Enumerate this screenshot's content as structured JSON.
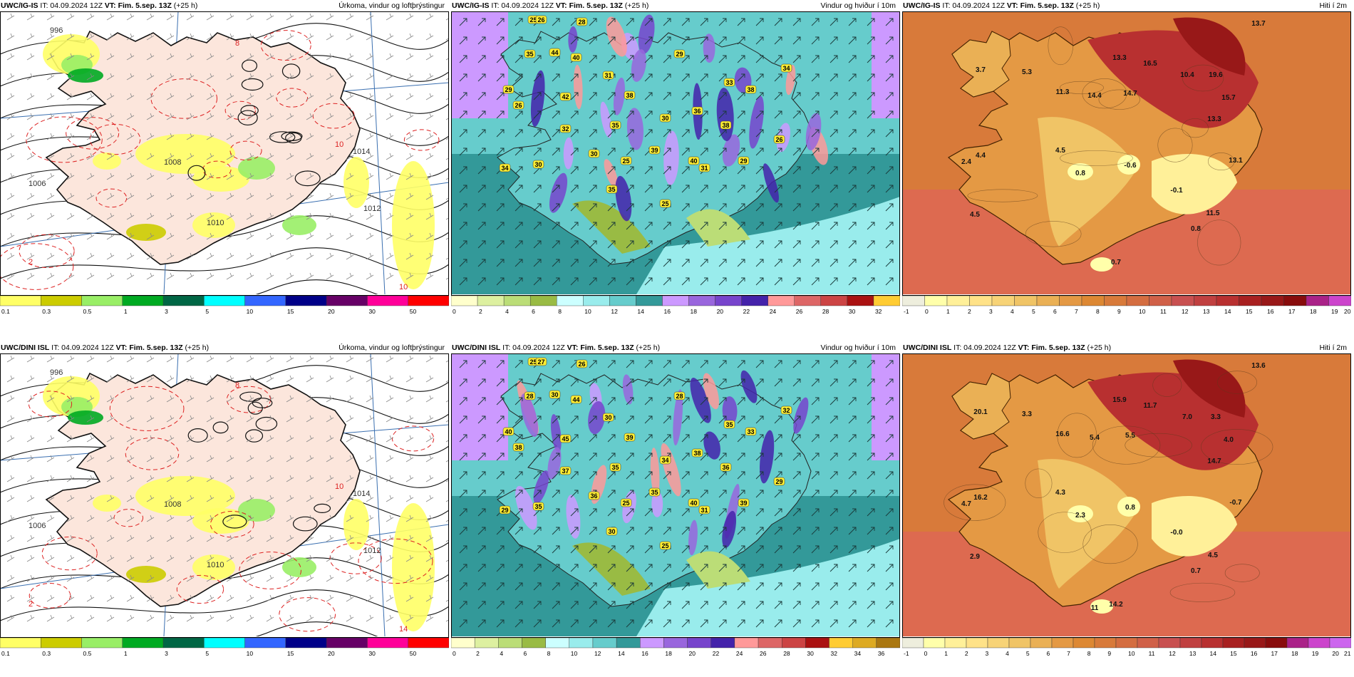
{
  "rows": [
    {
      "top": 17,
      "panels": [
        {
          "model": "UWC/IG-IS",
          "it": "IT: 04.09.2024 12Z",
          "vt": "VT: Fim. 5.sep. 13Z",
          "lead": "(+25 h)",
          "title": "Úrkoma, vindur og loftþrýstingur",
          "kind": "precip",
          "colorbar": {
            "colors": [
              "#ffff66",
              "#cccc00",
              "#99ee66",
              "#00aa22",
              "#006644",
              "#00ffff",
              "#3366ff",
              "#000088",
              "#660066",
              "#ff0099",
              "#ff0000"
            ],
            "labels": [
              "0.1",
              "0.3",
              "0.5",
              "1",
              "3",
              "5",
              "10",
              "15",
              "20",
              "30",
              "50"
            ]
          },
          "labels": [
            {
              "t": "996"
            },
            {
              "t": "1006"
            },
            {
              "t": "1008"
            },
            {
              "t": "1010"
            },
            {
              "t": "1012"
            },
            {
              "t": "1014"
            },
            {
              "t": "2"
            },
            {
              "t": "8"
            },
            {
              "t": "10"
            },
            {
              "t": "10"
            }
          ]
        },
        {
          "model": "UWC/IG-IS",
          "it": "IT: 04.09.2024 12Z",
          "vt": "VT: Fim. 5.sep. 13Z",
          "lead": "(+25 h)",
          "title": "Vindur og hviður í 10m",
          "kind": "wind",
          "colorbar": {
            "colors": [
              "#ffffcc",
              "#ddf0a0",
              "#bbdd77",
              "#99bb44",
              "#ccffff",
              "#99ecec",
              "#66cccc",
              "#339999",
              "#cc99ff",
              "#9966dd",
              "#7744cc",
              "#4422aa",
              "#ff9999",
              "#dd6666",
              "#cc4444",
              "#aa1111",
              "#ffcc33"
            ],
            "labels": [
              "0",
              "2",
              "4",
              "6",
              "8",
              "10",
              "12",
              "14",
              "16",
              "18",
              "20",
              "22",
              "24",
              "26",
              "28",
              "30",
              "32"
            ]
          },
          "gusts": [
            "25",
            "26",
            "28",
            "35",
            "44",
            "40",
            "29",
            "26",
            "42",
            "31",
            "35",
            "38",
            "32",
            "30",
            "25",
            "29",
            "33",
            "34",
            "38",
            "30",
            "36",
            "38",
            "39",
            "40",
            "29",
            "26",
            "25",
            "31",
            "34",
            "30",
            "35"
          ]
        },
        {
          "model": "UWC/IG-IS",
          "it": "IT: 04.09.2024 12Z",
          "vt": "VT: Fim. 5.sep. 13Z",
          "lead": "(+25 h)",
          "title": "Hiti í 2m",
          "kind": "temp",
          "colorbar": {
            "colors": [
              "#eeeedd",
              "#ffffaa",
              "#fff099",
              "#ffe288",
              "#f7d377",
              "#f0c466",
              "#eab055",
              "#e49944",
              "#dd8833",
              "#d87a3a",
              "#d46d40",
              "#d06048",
              "#c85050",
              "#c04040",
              "#b83030",
              "#a82020",
              "#981818",
              "#880c0c",
              "#aa2288",
              "#cc44cc"
            ],
            "labels": [
              "-1",
              "0",
              "1",
              "2",
              "3",
              "4",
              "5",
              "6",
              "7",
              "8",
              "9",
              "10",
              "11",
              "12",
              "13",
              "14",
              "15",
              "16",
              "17",
              "18",
              "19",
              "20"
            ]
          },
          "temps": [
            "13.7",
            "3.7",
            "5.3",
            "13.3",
            "16.5",
            "10.4",
            "19.6",
            "11.3",
            "14.4",
            "14.7",
            "15.7",
            "13.3",
            "4.4",
            "4.5",
            "2.4",
            "0.8",
            "-0.6",
            "13.1",
            "-0.1",
            "4.5",
            "11.5",
            "0.8",
            "0.7"
          ]
        }
      ]
    },
    {
      "top": 497,
      "panels": [
        {
          "model": "UWC/DINI ISL",
          "it": "IT: 04.09.2024 12Z",
          "vt": "VT: Fim. 5.sep. 13Z",
          "lead": "(+25 h)",
          "title": "Úrkoma, vindur og loftþrýstingur",
          "kind": "precip",
          "colorbar": {
            "colors": [
              "#ffff66",
              "#cccc00",
              "#99ee66",
              "#00aa22",
              "#006644",
              "#00ffff",
              "#3366ff",
              "#000088",
              "#660066",
              "#ff0099",
              "#ff0000"
            ],
            "labels": [
              "0.1",
              "0.3",
              "0.5",
              "1",
              "3",
              "5",
              "10",
              "15",
              "20",
              "30",
              "50"
            ]
          },
          "labels": [
            {
              "t": "996"
            },
            {
              "t": "1006"
            },
            {
              "t": "1008"
            },
            {
              "t": "1010"
            },
            {
              "t": "1012"
            },
            {
              "t": "1014"
            },
            {
              "t": "2"
            },
            {
              "t": "8"
            },
            {
              "t": "10"
            },
            {
              "t": "14"
            }
          ]
        },
        {
          "model": "UWC/DINI ISL",
          "it": "IT: 04.09.2024 12Z",
          "vt": "VT: Fim. 5.sep. 13Z",
          "lead": "(+25 h)",
          "title": "Vindur og hviður í 10m",
          "kind": "wind",
          "colorbar": {
            "colors": [
              "#ffffcc",
              "#ddf0a0",
              "#bbdd77",
              "#99bb44",
              "#ccffff",
              "#99ecec",
              "#66cccc",
              "#339999",
              "#cc99ff",
              "#9966dd",
              "#7744cc",
              "#4422aa",
              "#ff9999",
              "#dd6666",
              "#cc4444",
              "#aa1111",
              "#ffcc33",
              "#ddaa22",
              "#aa7711"
            ],
            "labels": [
              "0",
              "2",
              "4",
              "6",
              "8",
              "10",
              "12",
              "14",
              "16",
              "18",
              "20",
              "22",
              "24",
              "26",
              "28",
              "30",
              "32",
              "34",
              "36"
            ]
          },
          "gusts": [
            "25",
            "27",
            "26",
            "28",
            "30",
            "44",
            "40",
            "38",
            "45",
            "30",
            "35",
            "39",
            "37",
            "36",
            "25",
            "28",
            "35",
            "32",
            "33",
            "34",
            "38",
            "36",
            "35",
            "40",
            "39",
            "29",
            "25",
            "31",
            "29",
            "35",
            "30"
          ]
        },
        {
          "model": "UWC/DINI ISL",
          "it": "IT: 04.09.2024 12Z",
          "vt": "VT: Fim. 5.sep. 13Z",
          "lead": "(+25 h)",
          "title": "Hiti í 2m",
          "kind": "temp",
          "colorbar": {
            "colors": [
              "#eeeedd",
              "#ffffaa",
              "#fff099",
              "#ffe288",
              "#f7d377",
              "#f0c466",
              "#eab055",
              "#e49944",
              "#dd8833",
              "#d87a3a",
              "#d46d40",
              "#d06048",
              "#c85050",
              "#c04040",
              "#b83030",
              "#a82020",
              "#981818",
              "#880c0c",
              "#aa2288",
              "#cc44cc",
              "#cc66ee"
            ],
            "labels": [
              "-1",
              "0",
              "1",
              "2",
              "3",
              "4",
              "5",
              "6",
              "7",
              "8",
              "9",
              "10",
              "11",
              "12",
              "13",
              "14",
              "15",
              "16",
              "17",
              "18",
              "19",
              "20",
              "21"
            ]
          },
          "temps": [
            "13.6",
            "20.1",
            "3.3",
            "15.9",
            "11.7",
            "7.0",
            "3.3",
            "16.6",
            "5.4",
            "5.5",
            "4.0",
            "14.7",
            "16.2",
            "4.3",
            "4.7",
            "2.3",
            "0.8",
            "-0.7",
            "-0.0",
            "2.9",
            "4.5",
            "0.7",
            "14.2",
            "11"
          ]
        }
      ]
    }
  ]
}
